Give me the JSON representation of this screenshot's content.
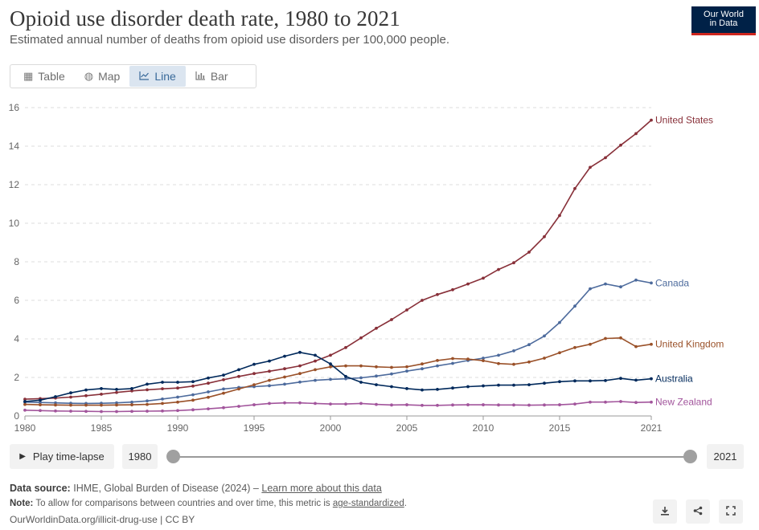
{
  "header": {
    "title": "Opioid use disorder death rate, 1980 to 2021",
    "subtitle": "Estimated annual number of deaths from opioid use disorders per 100,000 people.",
    "logo_line1": "Our World",
    "logo_line2": "in Data"
  },
  "tabs": [
    {
      "label": "Table",
      "icon": "table-icon"
    },
    {
      "label": "Map",
      "icon": "globe-icon"
    },
    {
      "label": "Line",
      "icon": "line-chart-icon",
      "active": true
    },
    {
      "label": "Bar",
      "icon": "bar-chart-icon"
    }
  ],
  "controls": {
    "play_label": "Play time-lapse",
    "start_year": "1980",
    "end_year": "2021"
  },
  "footer": {
    "source_label": "Data source:",
    "source_text": "IHME, Global Burden of Disease (2024) –",
    "source_link": "Learn more about this data",
    "note_label": "Note:",
    "note_text": "To allow for comparisons between countries and over time, this metric is",
    "note_link": "age-standardized",
    "note_end": ".",
    "url": "OurWorldinData.org/illicit-drug-use | CC BY"
  },
  "chart_data": {
    "type": "line",
    "title": "Opioid use disorder death rate, 1980 to 2021",
    "xlabel": "",
    "ylabel": "",
    "xlim": [
      1980,
      2021
    ],
    "ylim": [
      0,
      16
    ],
    "yticks": [
      0,
      2,
      4,
      6,
      8,
      10,
      12,
      14,
      16
    ],
    "xticks": [
      1980,
      1985,
      1990,
      1995,
      2000,
      2005,
      2010,
      2015,
      2021
    ],
    "grid": "horizontal-dashed",
    "legend": "inline-right",
    "x": [
      1980,
      1981,
      1982,
      1983,
      1984,
      1985,
      1986,
      1987,
      1988,
      1989,
      1990,
      1991,
      1992,
      1993,
      1994,
      1995,
      1996,
      1997,
      1998,
      1999,
      2000,
      2001,
      2002,
      2003,
      2004,
      2005,
      2006,
      2007,
      2008,
      2009,
      2010,
      2011,
      2012,
      2013,
      2014,
      2015,
      2016,
      2017,
      2018,
      2019,
      2020,
      2021
    ],
    "series": [
      {
        "name": "United States",
        "color": "#883039",
        "values": [
          0.87,
          0.9,
          0.93,
          0.98,
          1.05,
          1.13,
          1.22,
          1.3,
          1.36,
          1.41,
          1.45,
          1.55,
          1.7,
          1.88,
          2.05,
          2.2,
          2.32,
          2.45,
          2.6,
          2.85,
          3.15,
          3.55,
          4.05,
          4.55,
          5.0,
          5.5,
          6.0,
          6.3,
          6.55,
          6.85,
          7.15,
          7.6,
          7.95,
          8.5,
          9.3,
          10.4,
          11.8,
          12.9,
          13.4,
          14.05,
          14.65,
          15.35
        ]
      },
      {
        "name": "Canada",
        "color": "#4c6a9c",
        "values": [
          0.72,
          0.7,
          0.68,
          0.66,
          0.65,
          0.66,
          0.68,
          0.72,
          0.78,
          0.88,
          0.98,
          1.1,
          1.25,
          1.4,
          1.48,
          1.52,
          1.57,
          1.65,
          1.76,
          1.85,
          1.9,
          1.93,
          1.98,
          2.07,
          2.18,
          2.33,
          2.45,
          2.6,
          2.73,
          2.88,
          3.0,
          3.15,
          3.38,
          3.7,
          4.15,
          4.85,
          5.7,
          6.6,
          6.85,
          6.7,
          7.05,
          6.9
        ]
      },
      {
        "name": "United Kingdom",
        "color": "#9a5129",
        "values": [
          0.6,
          0.58,
          0.57,
          0.56,
          0.56,
          0.56,
          0.57,
          0.58,
          0.6,
          0.65,
          0.72,
          0.82,
          0.97,
          1.18,
          1.4,
          1.62,
          1.85,
          2.02,
          2.2,
          2.4,
          2.55,
          2.6,
          2.6,
          2.55,
          2.52,
          2.55,
          2.7,
          2.88,
          2.98,
          2.95,
          2.87,
          2.72,
          2.68,
          2.8,
          3.0,
          3.28,
          3.55,
          3.72,
          4.02,
          4.05,
          3.6,
          3.72
        ]
      },
      {
        "name": "Australia",
        "color": "#00295b",
        "values": [
          0.75,
          0.82,
          1.0,
          1.2,
          1.35,
          1.42,
          1.38,
          1.42,
          1.65,
          1.75,
          1.75,
          1.78,
          1.97,
          2.12,
          2.4,
          2.68,
          2.85,
          3.1,
          3.3,
          3.15,
          2.7,
          2.05,
          1.75,
          1.62,
          1.52,
          1.42,
          1.35,
          1.38,
          1.45,
          1.52,
          1.56,
          1.6,
          1.6,
          1.62,
          1.7,
          1.78,
          1.82,
          1.82,
          1.84,
          1.95,
          1.86,
          1.93
        ]
      },
      {
        "name": "New Zealand",
        "color": "#a2559c",
        "values": [
          0.3,
          0.28,
          0.26,
          0.25,
          0.24,
          0.23,
          0.23,
          0.24,
          0.25,
          0.26,
          0.28,
          0.32,
          0.37,
          0.43,
          0.5,
          0.58,
          0.65,
          0.68,
          0.68,
          0.65,
          0.62,
          0.62,
          0.65,
          0.6,
          0.57,
          0.58,
          0.55,
          0.55,
          0.57,
          0.58,
          0.58,
          0.57,
          0.57,
          0.56,
          0.57,
          0.58,
          0.62,
          0.72,
          0.72,
          0.75,
          0.7,
          0.72
        ]
      }
    ]
  }
}
